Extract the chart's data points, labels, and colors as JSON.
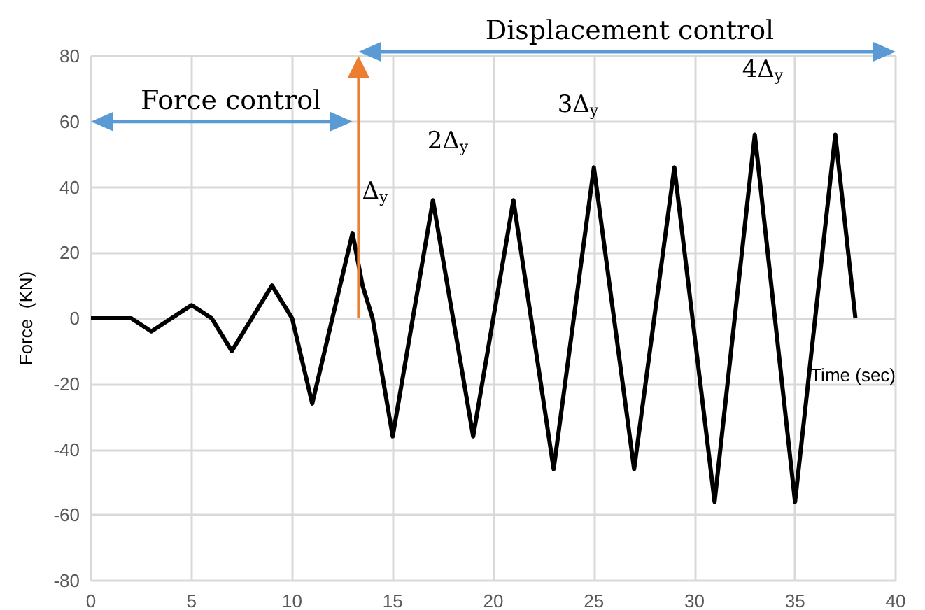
{
  "chart_data": {
    "type": "line",
    "xlabel": "Time (sec)",
    "ylabel": "Force  (KN)",
    "x": [
      0,
      2,
      3,
      4,
      5,
      6,
      7,
      8,
      9,
      10,
      11,
      12,
      13,
      13.5,
      14,
      15,
      17,
      19,
      21,
      23,
      25,
      27,
      29,
      31,
      33,
      35,
      37,
      38
    ],
    "series": [
      {
        "color": "#000000",
        "values": [
          0,
          0,
          -4,
          0,
          4,
          0,
          -10,
          0,
          10,
          0,
          -26,
          0,
          26,
          10,
          0,
          -36,
          36,
          -36,
          36,
          -46,
          46,
          -46,
          46,
          -56,
          56,
          -56,
          56,
          0
        ]
      }
    ],
    "xlim": [
      0,
      40
    ],
    "xticks": [
      0,
      5,
      10,
      15,
      20,
      25,
      30,
      35,
      40
    ],
    "ylim": [
      -80,
      80
    ],
    "yticks": [
      -80,
      -60,
      -40,
      -20,
      0,
      20,
      40,
      60,
      80
    ],
    "grid": true,
    "marker": "none",
    "line_style": "solid",
    "annotations": [
      "Force control",
      "Displacement control",
      "Δ$_{y}$",
      "2Δ$_{y}$",
      "3Δ$_{y}$",
      "4Δ$_{y}$"
    ]
  }
}
